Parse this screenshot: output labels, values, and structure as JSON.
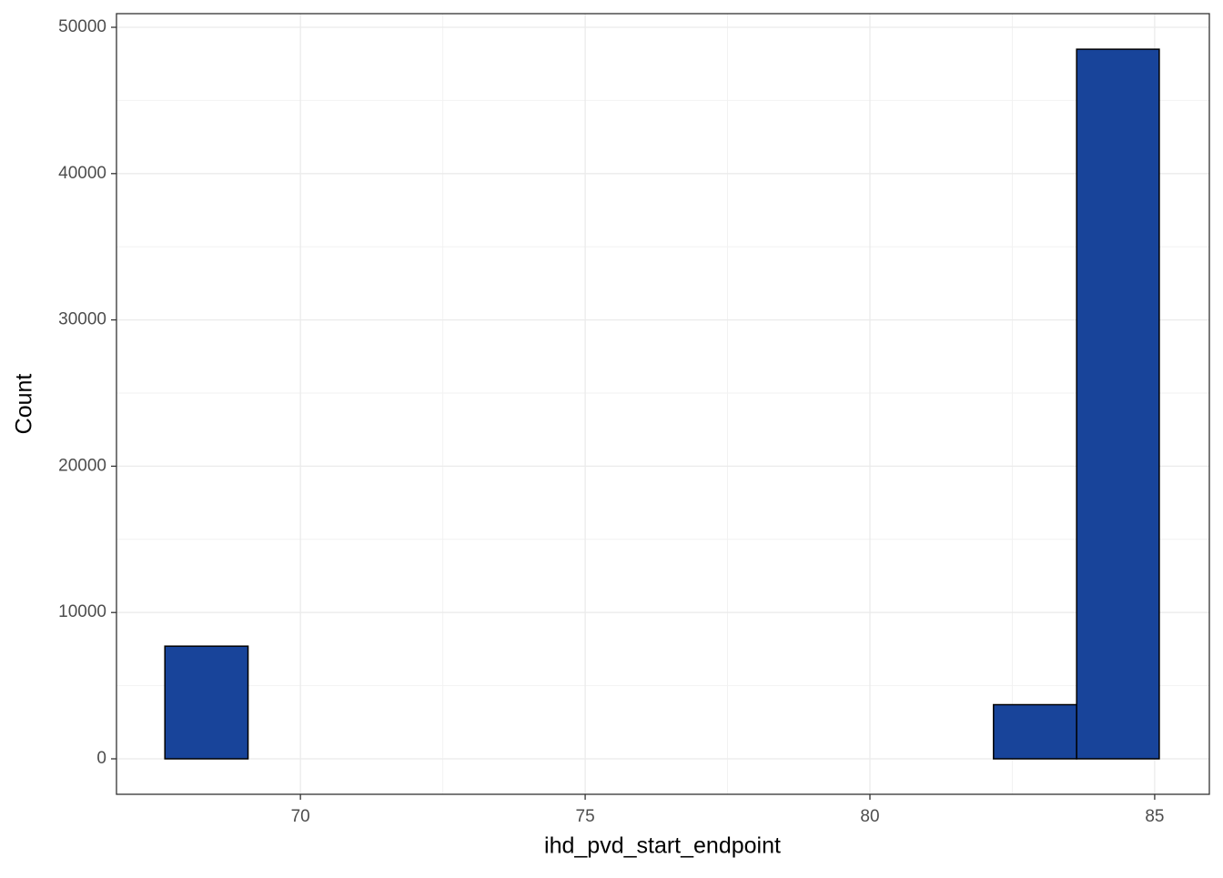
{
  "chart_data": {
    "type": "histogram",
    "x_label": "ihd_pvd_start_endpoint",
    "y_label": "Count",
    "bins": [
      67.62,
      69.08,
      70.53,
      71.99,
      73.44,
      74.9,
      76.35,
      77.81,
      79.26,
      80.72,
      82.17,
      83.63,
      85.08
    ],
    "values": [
      7700,
      0,
      0,
      0,
      0,
      0,
      0,
      0,
      0,
      0,
      3700,
      48500
    ],
    "color": "#18449a",
    "xlim": [
      66.77,
      85.96
    ],
    "xticks": [
      70,
      75,
      80,
      85
    ],
    "ylim": [
      -2425,
      50933
    ],
    "yticks": [
      0,
      10000,
      20000,
      30000,
      40000,
      50000
    ],
    "grid": true
  }
}
